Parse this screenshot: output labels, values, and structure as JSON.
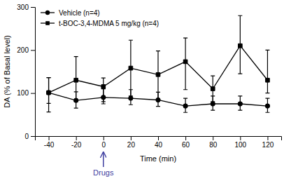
{
  "chart_data": {
    "type": "line",
    "xlabel": "Time (min)",
    "ylabel": "DA (% of Basal level)",
    "x": [
      -40,
      -20,
      0,
      20,
      40,
      60,
      80,
      100,
      120
    ],
    "series": [
      {
        "name": "Vehicle (n=4)",
        "color": "#000000",
        "marker": "circle",
        "line_style": "solid",
        "values": [
          101,
          83,
          90,
          88,
          84,
          70,
          75,
          75,
          70
        ],
        "error_low": [
          25,
          18,
          15,
          15,
          15,
          15,
          15,
          15,
          15
        ],
        "error_high": [
          35,
          20,
          20,
          20,
          18,
          18,
          18,
          18,
          18
        ]
      },
      {
        "name": "t-BOC-3,4-MDMA 5 mg/kg (n=4)",
        "color": "#000000",
        "marker": "square",
        "line_style": "solid",
        "values": [
          101,
          130,
          115,
          158,
          143,
          173,
          110,
          210,
          130
        ],
        "error_low": [
          45,
          50,
          35,
          65,
          60,
          65,
          30,
          65,
          30
        ],
        "error_high": [
          35,
          55,
          20,
          65,
          55,
          55,
          30,
          70,
          70
        ]
      }
    ],
    "xlim": [
      -50,
      130
    ],
    "xticks": [
      -40,
      -20,
      0,
      20,
      40,
      60,
      80,
      100,
      120
    ],
    "ylim": [
      0,
      300
    ],
    "yticks": [
      0,
      100,
      200,
      300
    ],
    "legend": "upper left",
    "annotations": [
      {
        "text": "Drugs",
        "x": 0,
        "color": "#4040a0",
        "arrow_color": "#4040a0"
      }
    ]
  }
}
